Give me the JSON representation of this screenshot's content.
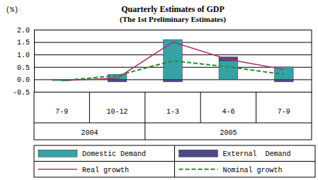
{
  "chart_data": {
    "type": "bar",
    "title": "Quarterly Estimates of GDP",
    "subtitle": "(The 1st Preliminary Estimates)",
    "y_label": "(%)",
    "categories": [
      "7-9",
      "10-12",
      "1-3",
      "4-6",
      "7-9"
    ],
    "category_groups": [
      "2004",
      "2004",
      "2005",
      "2005",
      "2005"
    ],
    "series": [
      {
        "name": "Domestic Demand",
        "type": "bar",
        "color": "#35a2a6",
        "values": [
          -0.05,
          0.2,
          1.6,
          0.75,
          0.5
        ]
      },
      {
        "name": "External  Demand",
        "type": "bar",
        "color": "#4b4a86",
        "values": [
          0.0,
          -0.1,
          -0.1,
          0.15,
          -0.1
        ]
      },
      {
        "name": "Real growth",
        "type": "line",
        "color": "#a8306e",
        "line_style": "solid",
        "values": [
          -0.05,
          0.05,
          1.5,
          0.8,
          0.4
        ]
      },
      {
        "name": "Nominal growth",
        "type": "line",
        "color": "#2e8b2e",
        "line_style": "dashed",
        "values": [
          -0.05,
          0.15,
          0.75,
          0.5,
          0.2
        ]
      }
    ],
    "stacked": true,
    "ylim": [
      -0.5,
      2.0
    ],
    "yticks": [
      -0.5,
      {
        "value": 0,
        "label": "0.0"
      },
      0.5,
      {
        "value": 1,
        "label": "1.0"
      },
      1.5,
      {
        "value": 2,
        "label": "2.0"
      }
    ],
    "grid": true,
    "legend": "bottom"
  }
}
